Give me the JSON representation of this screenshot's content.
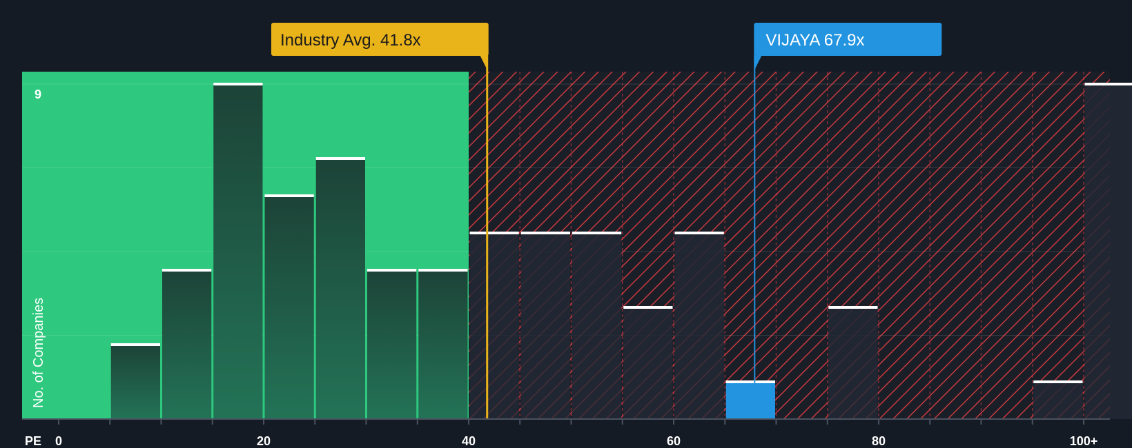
{
  "chart_data": {
    "type": "bar",
    "title": "",
    "xlabel": "PE",
    "ylabel": "No. of Companies",
    "ymax_label": "9",
    "ylim": [
      0,
      9
    ],
    "x_ticks": [
      "0",
      "20",
      "40",
      "60",
      "80",
      "100+"
    ],
    "bins": [
      {
        "from": 5,
        "to": 10,
        "count": 2
      },
      {
        "from": 10,
        "to": 15,
        "count": 4
      },
      {
        "from": 15,
        "to": 20,
        "count": 9
      },
      {
        "from": 20,
        "to": 25,
        "count": 6
      },
      {
        "from": 25,
        "to": 30,
        "count": 7
      },
      {
        "from": 30,
        "to": 35,
        "count": 4
      },
      {
        "from": 35,
        "to": 40,
        "count": 4
      },
      {
        "from": 40,
        "to": 45,
        "count": 5
      },
      {
        "from": 45,
        "to": 50,
        "count": 5
      },
      {
        "from": 50,
        "to": 55,
        "count": 5
      },
      {
        "from": 55,
        "to": 60,
        "count": 3
      },
      {
        "from": 60,
        "to": 65,
        "count": 5
      },
      {
        "from": 65,
        "to": 70,
        "count": 1,
        "highlight": true
      },
      {
        "from": 75,
        "to": 80,
        "count": 3
      },
      {
        "from": 95,
        "to": 100,
        "count": 1
      },
      {
        "from": 100,
        "to": 105,
        "count": 9
      }
    ],
    "fair_zone_max": 40,
    "industry_avg": {
      "value": 41.8,
      "label": "Industry Avg. 41.8x"
    },
    "company": {
      "value": 67.9,
      "label": "VIJAYA 67.9x"
    },
    "colors": {
      "background": "#151b24",
      "fair_zone": "#2ec97e",
      "bar_dark": "#1e4a3c",
      "bar_overvalued": "#1f2530",
      "hatch": "#c9393f",
      "industry": "#e9b31a",
      "company": "#2394e0",
      "cap": "#ffffff"
    }
  }
}
